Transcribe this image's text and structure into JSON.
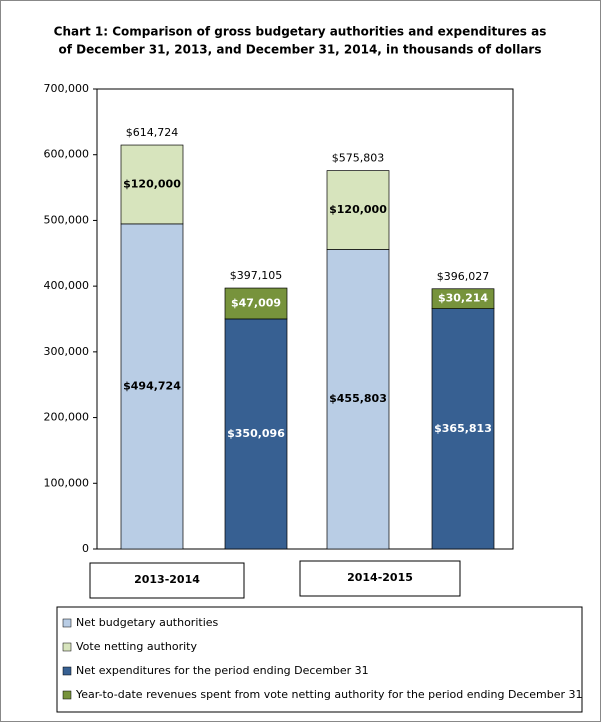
{
  "chart_data": {
    "type": "stacked-bar",
    "title": [
      "Chart 1: Comparison of gross budgetary authorities and expenditures as",
      "of December 31, 2013, and December 31, 2014, in thousands of dollars"
    ],
    "categories": [
      null,
      null,
      null,
      null
    ],
    "groups": [
      "2013-2014",
      "2014-2015"
    ],
    "series": [
      {
        "name": "Net budgetary authorities",
        "color": "#b9cde5",
        "values": [
          494724,
          null,
          455803,
          null
        ],
        "value_labels": [
          "$494,724",
          null,
          "$455,803",
          null
        ]
      },
      {
        "name": "Vote netting authority",
        "color": "#d7e4bd",
        "values": [
          120000,
          null,
          120000,
          null
        ],
        "value_labels": [
          "$120,000",
          null,
          "$120,000",
          null
        ]
      },
      {
        "name": "Net expenditures for the period ending December 31",
        "color": "#376092",
        "values": [
          null,
          350096,
          null,
          365813
        ],
        "value_labels": [
          null,
          "$350,096",
          null,
          "$365,813"
        ]
      },
      {
        "name": "Year-to-date revenues spent from vote netting authority for the period ending December 31",
        "color": "#77933c",
        "values": [
          null,
          47009,
          null,
          30214
        ],
        "value_labels": [
          null,
          "$47,009",
          null,
          "$30,214"
        ]
      }
    ],
    "total_labels": [
      "$614,724",
      "$397,105",
      "$575,803",
      "$396,027"
    ],
    "ylim": [
      0,
      700000
    ],
    "yticks": [
      0,
      {
        "value": 100000,
        "label": "100,000"
      },
      {
        "value": 200000,
        "label": "200,000"
      },
      {
        "value": 300000,
        "label": "300,000"
      },
      {
        "value": 400000,
        "label": "400,000"
      },
      {
        "value": 500000,
        "label": "500,000"
      },
      {
        "value": 600000,
        "label": "600,000"
      },
      {
        "value": 700000,
        "label": "700,000"
      }
    ]
  }
}
